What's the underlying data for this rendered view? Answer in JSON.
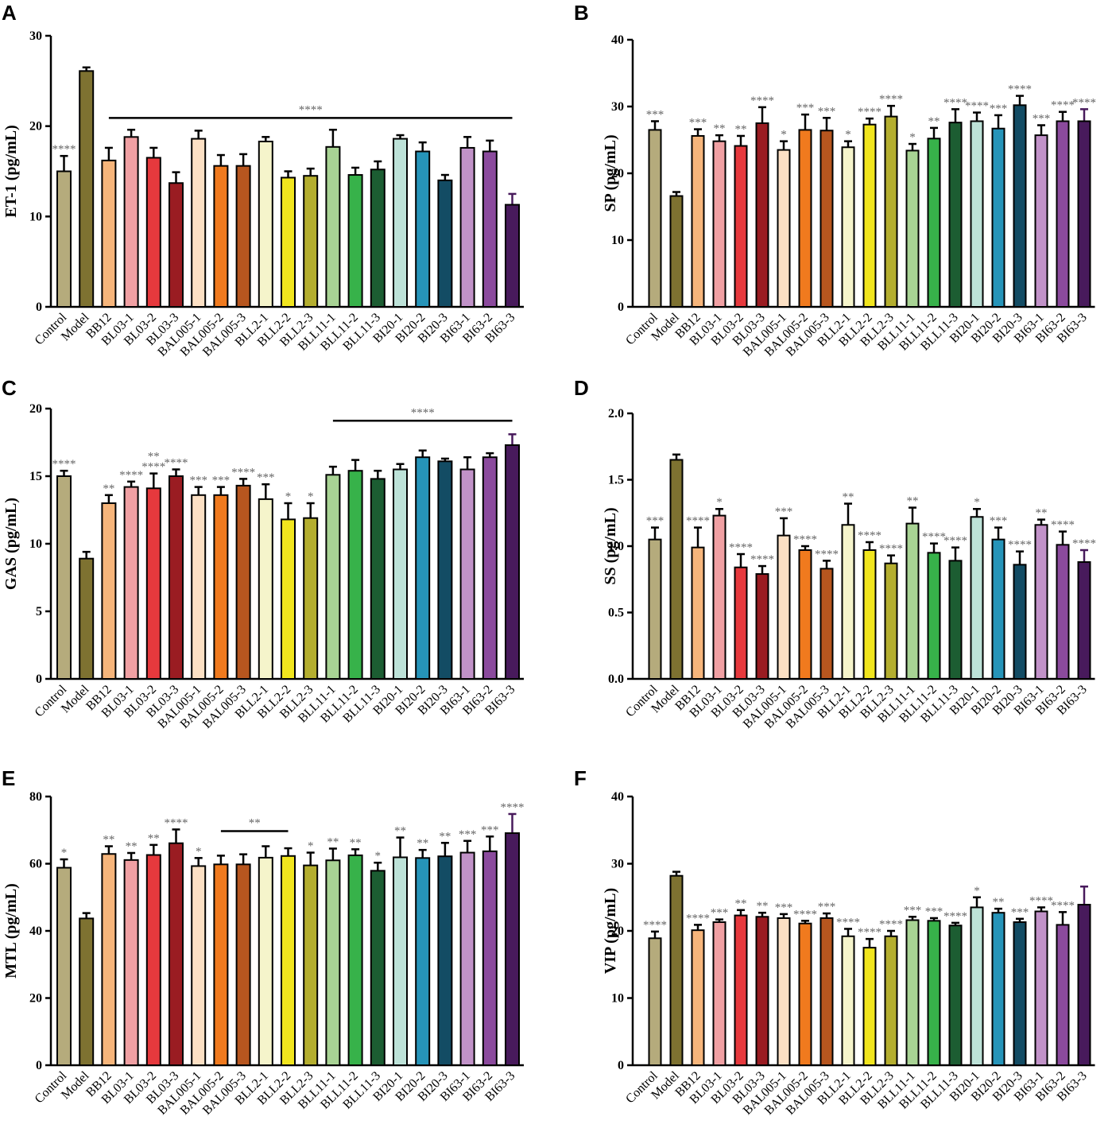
{
  "categories": [
    "Control",
    "Model",
    "BB12",
    "BL03-1",
    "BL03-2",
    "BL03-3",
    "BAL005-1",
    "BAL005-2",
    "BAL005-3",
    "BLL2-1",
    "BLL2-2",
    "BLL2-3",
    "BLL11-1",
    "BLL11-2",
    "BLL11-3",
    "BI20-1",
    "BI20-2",
    "BI20-3",
    "BI63-1",
    "BI63-2",
    "BI63-3"
  ],
  "colors": {
    "bars": [
      "#b5ab7c",
      "#7e7231",
      "#f6b57b",
      "#f0a0a3",
      "#e6393d",
      "#9a1c22",
      "#fce0c4",
      "#f07a1e",
      "#b7561f",
      "#f5f4cb",
      "#f1e51e",
      "#b4ae2f",
      "#a8d394",
      "#37b24a",
      "#1c5d32",
      "#bde2d8",
      "#2694b9",
      "#134c64",
      "#c192c8",
      "#8b4a9d",
      "#481a5c"
    ],
    "axis": "#000000",
    "stars": "#666666"
  },
  "chart_data": [
    {
      "panel": "A",
      "type": "bar",
      "ylabel": "ET-1 (pg/mL)",
      "ylim": [
        0,
        30
      ],
      "yticks": [
        0,
        10,
        20,
        30
      ],
      "values": [
        15.0,
        26.1,
        16.2,
        18.8,
        16.5,
        13.7,
        18.6,
        15.6,
        15.6,
        18.3,
        14.3,
        14.5,
        17.7,
        14.6,
        15.2,
        18.6,
        17.2,
        14.0,
        17.6,
        17.2,
        11.3
      ],
      "errors": [
        1.7,
        0.4,
        1.4,
        0.8,
        1.1,
        1.2,
        0.9,
        1.2,
        1.3,
        0.5,
        0.7,
        0.8,
        1.9,
        0.8,
        0.9,
        0.4,
        1.0,
        0.6,
        1.2,
        1.2,
        1.2
      ],
      "stars": [
        "****",
        "",
        "",
        "",
        "",
        "",
        "",
        "",
        "",
        "",
        "",
        "",
        "",
        "",
        "",
        "",
        "",
        "",
        "",
        "",
        ""
      ],
      "bracket": {
        "from": 2,
        "to": 20,
        "y": 20.9,
        "label": "****"
      }
    },
    {
      "panel": "B",
      "type": "bar",
      "ylabel": "SP (pg/mL)",
      "ylim": [
        0,
        40
      ],
      "yticks": [
        0,
        10,
        20,
        30,
        40
      ],
      "values": [
        26.5,
        16.6,
        25.6,
        24.8,
        24.1,
        27.5,
        23.5,
        26.5,
        26.4,
        23.9,
        27.3,
        28.5,
        23.4,
        25.2,
        27.6,
        27.8,
        26.7,
        30.2,
        25.7,
        27.8,
        27.8
      ],
      "errors": [
        1.3,
        0.6,
        1.0,
        0.9,
        1.5,
        2.4,
        1.3,
        2.3,
        1.9,
        0.9,
        0.9,
        1.6,
        1.0,
        1.6,
        2.0,
        1.3,
        2.0,
        1.4,
        1.5,
        1.4,
        1.8
      ],
      "stars": [
        "***",
        "",
        "***",
        "**",
        "**",
        "****",
        "*",
        "***",
        "***",
        "*",
        "****",
        "****",
        "*",
        "**",
        "****",
        "****",
        "***",
        "****",
        "***",
        "****",
        "****"
      ]
    },
    {
      "panel": "C",
      "type": "bar",
      "ylabel": "GAS (pg/mL)",
      "ylim": [
        0,
        20
      ],
      "yticks": [
        0,
        5,
        10,
        15,
        20
      ],
      "values": [
        15.0,
        8.9,
        13.0,
        14.2,
        14.1,
        15.0,
        13.6,
        13.6,
        14.3,
        13.3,
        11.8,
        11.9,
        15.1,
        15.4,
        14.8,
        15.5,
        16.4,
        16.1,
        15.5,
        16.4,
        17.3
      ],
      "errors": [
        0.4,
        0.5,
        0.6,
        0.4,
        1.1,
        0.5,
        0.6,
        0.6,
        0.5,
        1.1,
        1.2,
        1.1,
        0.6,
        0.8,
        0.6,
        0.4,
        0.5,
        0.2,
        0.9,
        0.3,
        0.8
      ],
      "stars": [
        "****",
        "",
        "**",
        "****",
        "****",
        "****",
        "***",
        "***",
        "****",
        "***",
        "*",
        "*",
        "",
        "",
        "",
        "",
        "",
        "",
        "",
        "",
        ""
      ],
      "stars_extra": [
        {
          "index": 4,
          "label": "**"
        }
      ],
      "bracket": {
        "from": 12,
        "to": 20,
        "y": 19.1,
        "label": "****"
      }
    },
    {
      "panel": "D",
      "type": "bar",
      "ylabel": "SS (pg/mL)",
      "ylim": [
        0,
        2.0
      ],
      "yticks": [
        0.0,
        0.5,
        1.0,
        1.5,
        2.0
      ],
      "values": [
        1.05,
        1.65,
        0.99,
        1.23,
        0.84,
        0.79,
        1.08,
        0.97,
        0.83,
        1.16,
        0.97,
        0.87,
        1.17,
        0.95,
        0.89,
        1.22,
        1.05,
        0.86,
        1.16,
        1.01,
        0.88
      ],
      "errors": [
        0.09,
        0.04,
        0.15,
        0.05,
        0.1,
        0.06,
        0.13,
        0.03,
        0.06,
        0.16,
        0.06,
        0.06,
        0.12,
        0.07,
        0.1,
        0.06,
        0.09,
        0.1,
        0.04,
        0.1,
        0.09
      ],
      "stars": [
        "***",
        "",
        "****",
        "*",
        "****",
        "****",
        "***",
        "****",
        "****",
        "**",
        "****",
        "****",
        "**",
        "****",
        "****",
        "*",
        "***",
        "****",
        "**",
        "****",
        "****"
      ]
    },
    {
      "panel": "E",
      "type": "bar",
      "ylabel": "MTL (pg/mL)",
      "ylim": [
        0,
        80
      ],
      "yticks": [
        0,
        20,
        40,
        60,
        80
      ],
      "values": [
        58.8,
        43.7,
        62.9,
        61.1,
        62.6,
        66.1,
        59.3,
        59.8,
        59.8,
        61.8,
        62.3,
        59.5,
        61.0,
        62.5,
        57.9,
        61.9,
        61.7,
        62.2,
        63.3,
        63.7,
        69.1
      ],
      "errors": [
        2.5,
        1.6,
        2.3,
        2.1,
        3.0,
        4.1,
        2.4,
        2.6,
        3.0,
        3.4,
        2.3,
        3.8,
        3.5,
        1.8,
        2.4,
        5.9,
        2.4,
        4.0,
        3.5,
        4.4,
        5.7
      ],
      "stars": [
        "*",
        "",
        "**",
        "**",
        "**",
        "****",
        "*",
        "",
        "",
        "",
        "",
        "*",
        "**",
        "**",
        "*",
        "**",
        "**",
        "**",
        "***",
        "***",
        "****"
      ],
      "bracket": {
        "from": 7,
        "to": 10,
        "y": 69.7,
        "label": "**"
      }
    },
    {
      "panel": "F",
      "type": "bar",
      "ylabel": "VIP (pg/mL)",
      "ylim": [
        0,
        40
      ],
      "yticks": [
        0,
        10,
        20,
        30,
        40
      ],
      "values": [
        18.9,
        28.2,
        20.1,
        21.3,
        22.3,
        22.1,
        21.9,
        21.1,
        21.9,
        19.2,
        17.5,
        19.2,
        21.6,
        21.5,
        20.8,
        23.5,
        22.7,
        21.3,
        22.9,
        20.9,
        23.9
      ],
      "errors": [
        1.0,
        0.6,
        0.8,
        0.4,
        0.8,
        0.6,
        0.6,
        0.4,
        0.7,
        1.1,
        1.3,
        0.8,
        0.5,
        0.4,
        0.4,
        1.5,
        0.6,
        0.5,
        0.6,
        1.9,
        2.7
      ],
      "stars": [
        "****",
        "",
        "****",
        "***",
        "**",
        "**",
        "***",
        "****",
        "***",
        "****",
        "****",
        "****",
        "***",
        "***",
        "****",
        "*",
        "**",
        "***",
        "****",
        "****",
        ""
      ]
    }
  ]
}
